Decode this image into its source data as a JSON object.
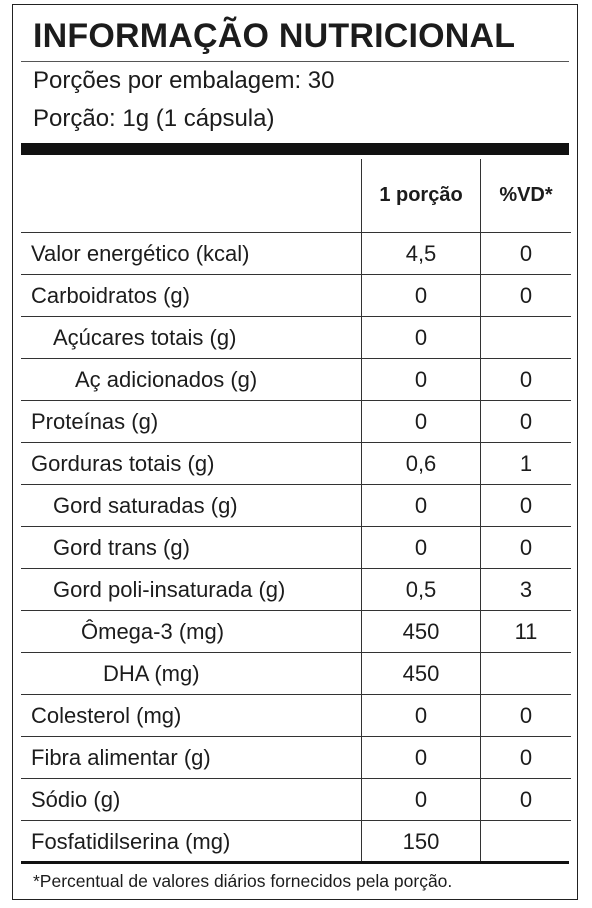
{
  "title": "INFORMAÇÃO NUTRICIONAL",
  "servings_per_package": "Porções por embalagem: 30",
  "serving_size": "Porção: 1g (1 cápsula)",
  "columns": {
    "name": "",
    "portion": "1 porção",
    "dv": "%VD*"
  },
  "rows": [
    {
      "name": "Valor energético (kcal)",
      "portion": "4,5",
      "dv": "0"
    },
    {
      "name": "Carboidratos (g)",
      "portion": "0",
      "dv": "0"
    },
    {
      "name": "Açúcares totais (g)",
      "portion": "0",
      "dv": ""
    },
    {
      "name": "Aç adicionados (g)",
      "portion": "0",
      "dv": "0"
    },
    {
      "name": "Proteínas (g)",
      "portion": "0",
      "dv": "0"
    },
    {
      "name": "Gorduras totais (g)",
      "portion": "0,6",
      "dv": "1"
    },
    {
      "name": "Gord saturadas (g)",
      "portion": "0",
      "dv": "0"
    },
    {
      "name": "Gord trans (g)",
      "portion": "0",
      "dv": "0"
    },
    {
      "name": "Gord poli-insaturada (g)",
      "portion": "0,5",
      "dv": "3"
    },
    {
      "name": "Ômega-3 (mg)",
      "portion": "450",
      "dv": "11"
    },
    {
      "name": "DHA (mg)",
      "portion": "450",
      "dv": ""
    },
    {
      "name": "Colesterol (mg)",
      "portion": "0",
      "dv": "0"
    },
    {
      "name": "Fibra alimentar (g)",
      "portion": "0",
      "dv": "0"
    },
    {
      "name": "Sódio (g)",
      "portion": "0",
      "dv": "0"
    },
    {
      "name": "Fosfatidilserina (mg)",
      "portion": "150",
      "dv": ""
    }
  ],
  "footnote": "*Percentual de valores diários fornecidos pela porção."
}
